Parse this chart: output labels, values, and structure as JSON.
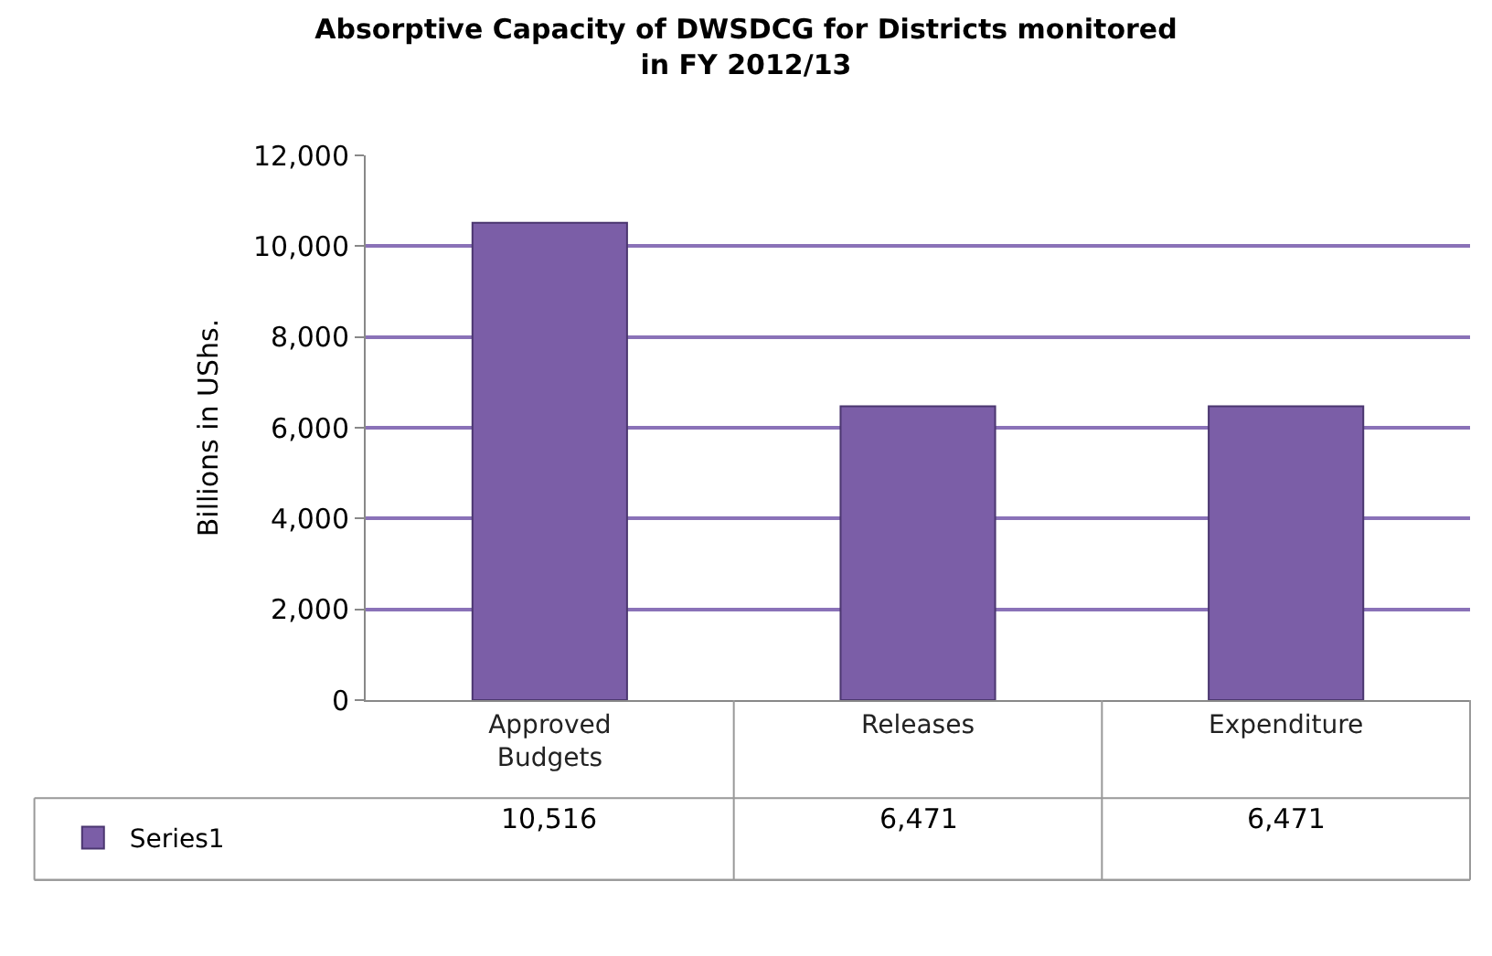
{
  "chart_data": {
    "type": "bar",
    "title": "Absorptive Capacity of DWSDCG for Districts monitored in FY 2012/13",
    "ylabel": "Billions in UShs.",
    "categories": [
      "Approved Budgets",
      "Releases",
      "Expenditure"
    ],
    "series": [
      {
        "name": "Series1",
        "color": "#7b5ea7",
        "values": [
          10516,
          6471,
          6471
        ],
        "value_labels": [
          "10,516",
          "6,471",
          "6,471"
        ]
      }
    ],
    "ylim": [
      0,
      12000
    ],
    "yticks": [
      {
        "value": 0,
        "label": "0"
      },
      {
        "value": 2000,
        "label": "2,000"
      },
      {
        "value": 4000,
        "label": "4,000"
      },
      {
        "value": 6000,
        "label": "6,000"
      },
      {
        "value": 8000,
        "label": "8,000"
      },
      {
        "value": 10000,
        "label": "10,000"
      },
      {
        "value": 12000,
        "label": "12,000"
      }
    ],
    "grid": "y",
    "legend": "bottom left"
  }
}
